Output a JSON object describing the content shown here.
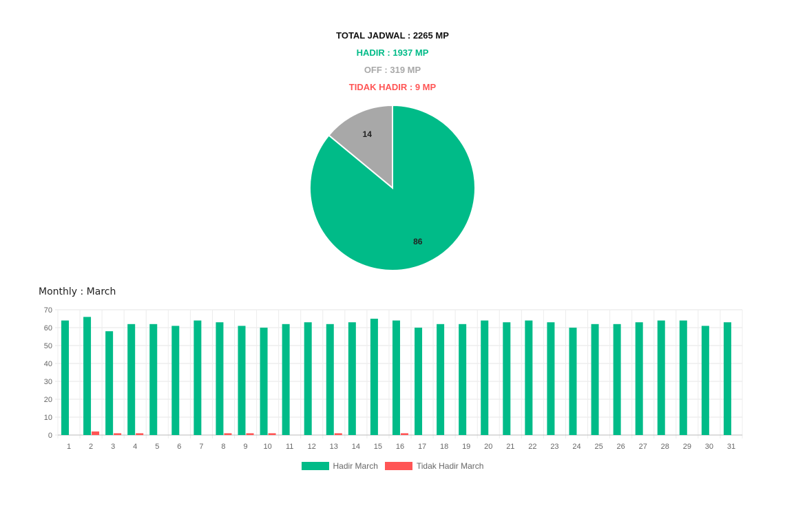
{
  "summary": {
    "total": "TOTAL JADWAL : 2265 MP",
    "hadir": "HADIR : 1937 MP",
    "off": "OFF : 319 MP",
    "tidak_hadir": "TIDAK HADIR : 9 MP"
  },
  "monthly_title": "Monthly : March",
  "colors": {
    "hadir": "#00bb88",
    "off": "#a8a8a8",
    "tidak_hadir": "#ff5555"
  },
  "chart_data": [
    {
      "type": "pie",
      "slices": [
        {
          "label": "Hadir",
          "value": 86,
          "color": "#00bb88"
        },
        {
          "label": "Off",
          "value": 14,
          "color": "#a8a8a8"
        }
      ]
    },
    {
      "type": "bar",
      "categories": [
        "1",
        "2",
        "3",
        "4",
        "5",
        "6",
        "7",
        "8",
        "9",
        "10",
        "11",
        "12",
        "13",
        "14",
        "15",
        "16",
        "17",
        "18",
        "19",
        "20",
        "21",
        "22",
        "23",
        "24",
        "25",
        "26",
        "27",
        "28",
        "29",
        "30",
        "31"
      ],
      "series": [
        {
          "name": "Hadir March",
          "color": "#00bb88",
          "values": [
            64,
            66,
            58,
            62,
            62,
            61,
            64,
            63,
            61,
            60,
            62,
            63,
            62,
            63,
            65,
            64,
            60,
            62,
            62,
            64,
            63,
            64,
            63,
            60,
            62,
            62,
            63,
            64,
            64,
            61,
            63
          ]
        },
        {
          "name": "Tidak Hadir March",
          "color": "#ff5555",
          "values": [
            0,
            2,
            1,
            1,
            0,
            0,
            0,
            1,
            1,
            1,
            0,
            0,
            1,
            0,
            0,
            1,
            0,
            0,
            0,
            0,
            0,
            0,
            0,
            0,
            0,
            0,
            0,
            0,
            0,
            0,
            0
          ]
        }
      ],
      "ylim": [
        0,
        70
      ],
      "yticks": [
        0,
        10,
        20,
        30,
        40,
        50,
        60,
        70
      ],
      "grid": true,
      "legend": "bottom"
    }
  ]
}
